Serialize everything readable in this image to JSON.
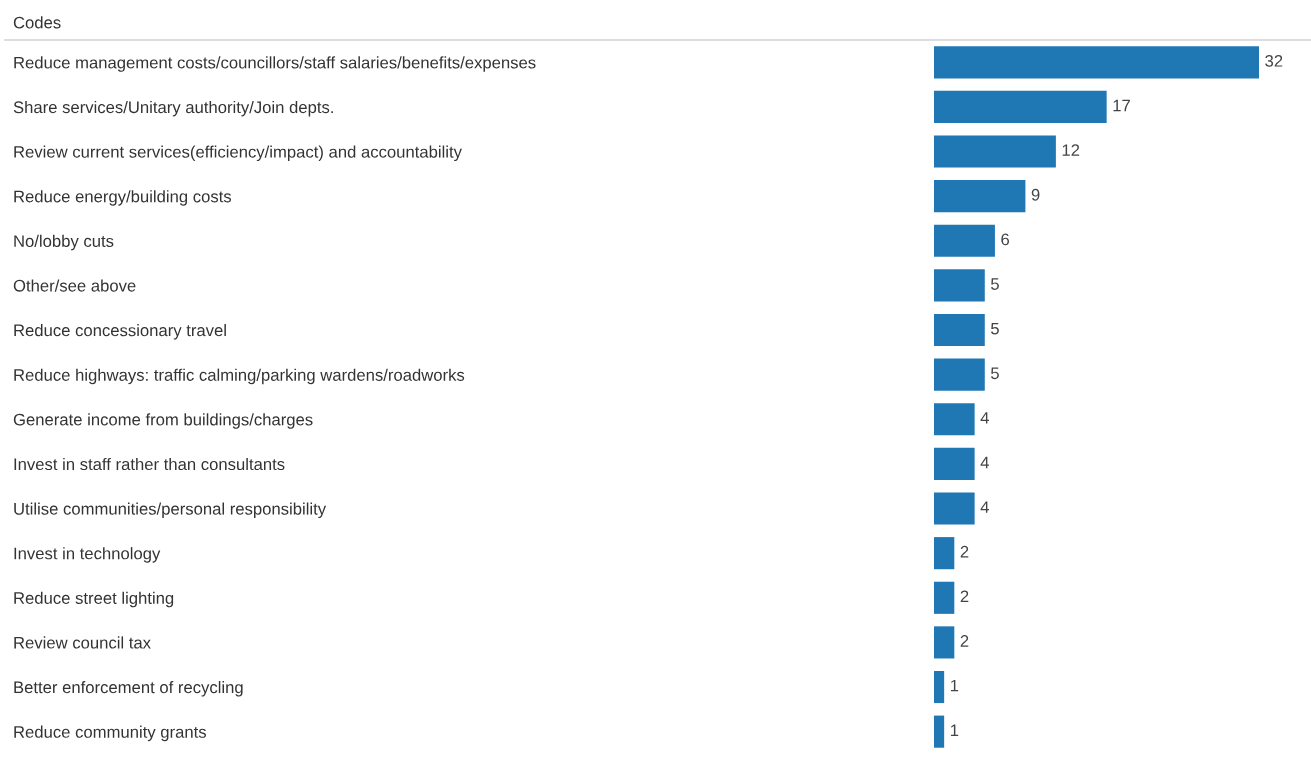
{
  "chart_data": {
    "type": "bar",
    "orientation": "horizontal",
    "ylabel": "Codes",
    "categories": [
      "Reduce management costs/councillors/staff salaries/benefits/expenses",
      "Share services/Unitary authority/Join depts.",
      "Review current services(efficiency/impact) and accountability",
      "Reduce energy/building costs",
      "No/lobby cuts",
      "Other/see above",
      "Reduce concessionary travel",
      "Reduce highways: traffic calming/parking wardens/roadworks",
      "Generate income from buildings/charges",
      "Invest in staff rather than consultants",
      "Utilise communities/personal responsibility",
      "Invest in technology",
      "Reduce street lighting",
      "Review council tax",
      "Better enforcement of recycling",
      "Reduce community grants"
    ],
    "values": [
      32,
      17,
      12,
      9,
      6,
      5,
      5,
      5,
      4,
      4,
      4,
      2,
      2,
      2,
      1,
      1
    ],
    "color": "#1f77b4",
    "data_labels": true,
    "tick_labels": "y",
    "grid": false,
    "legend": false
  }
}
